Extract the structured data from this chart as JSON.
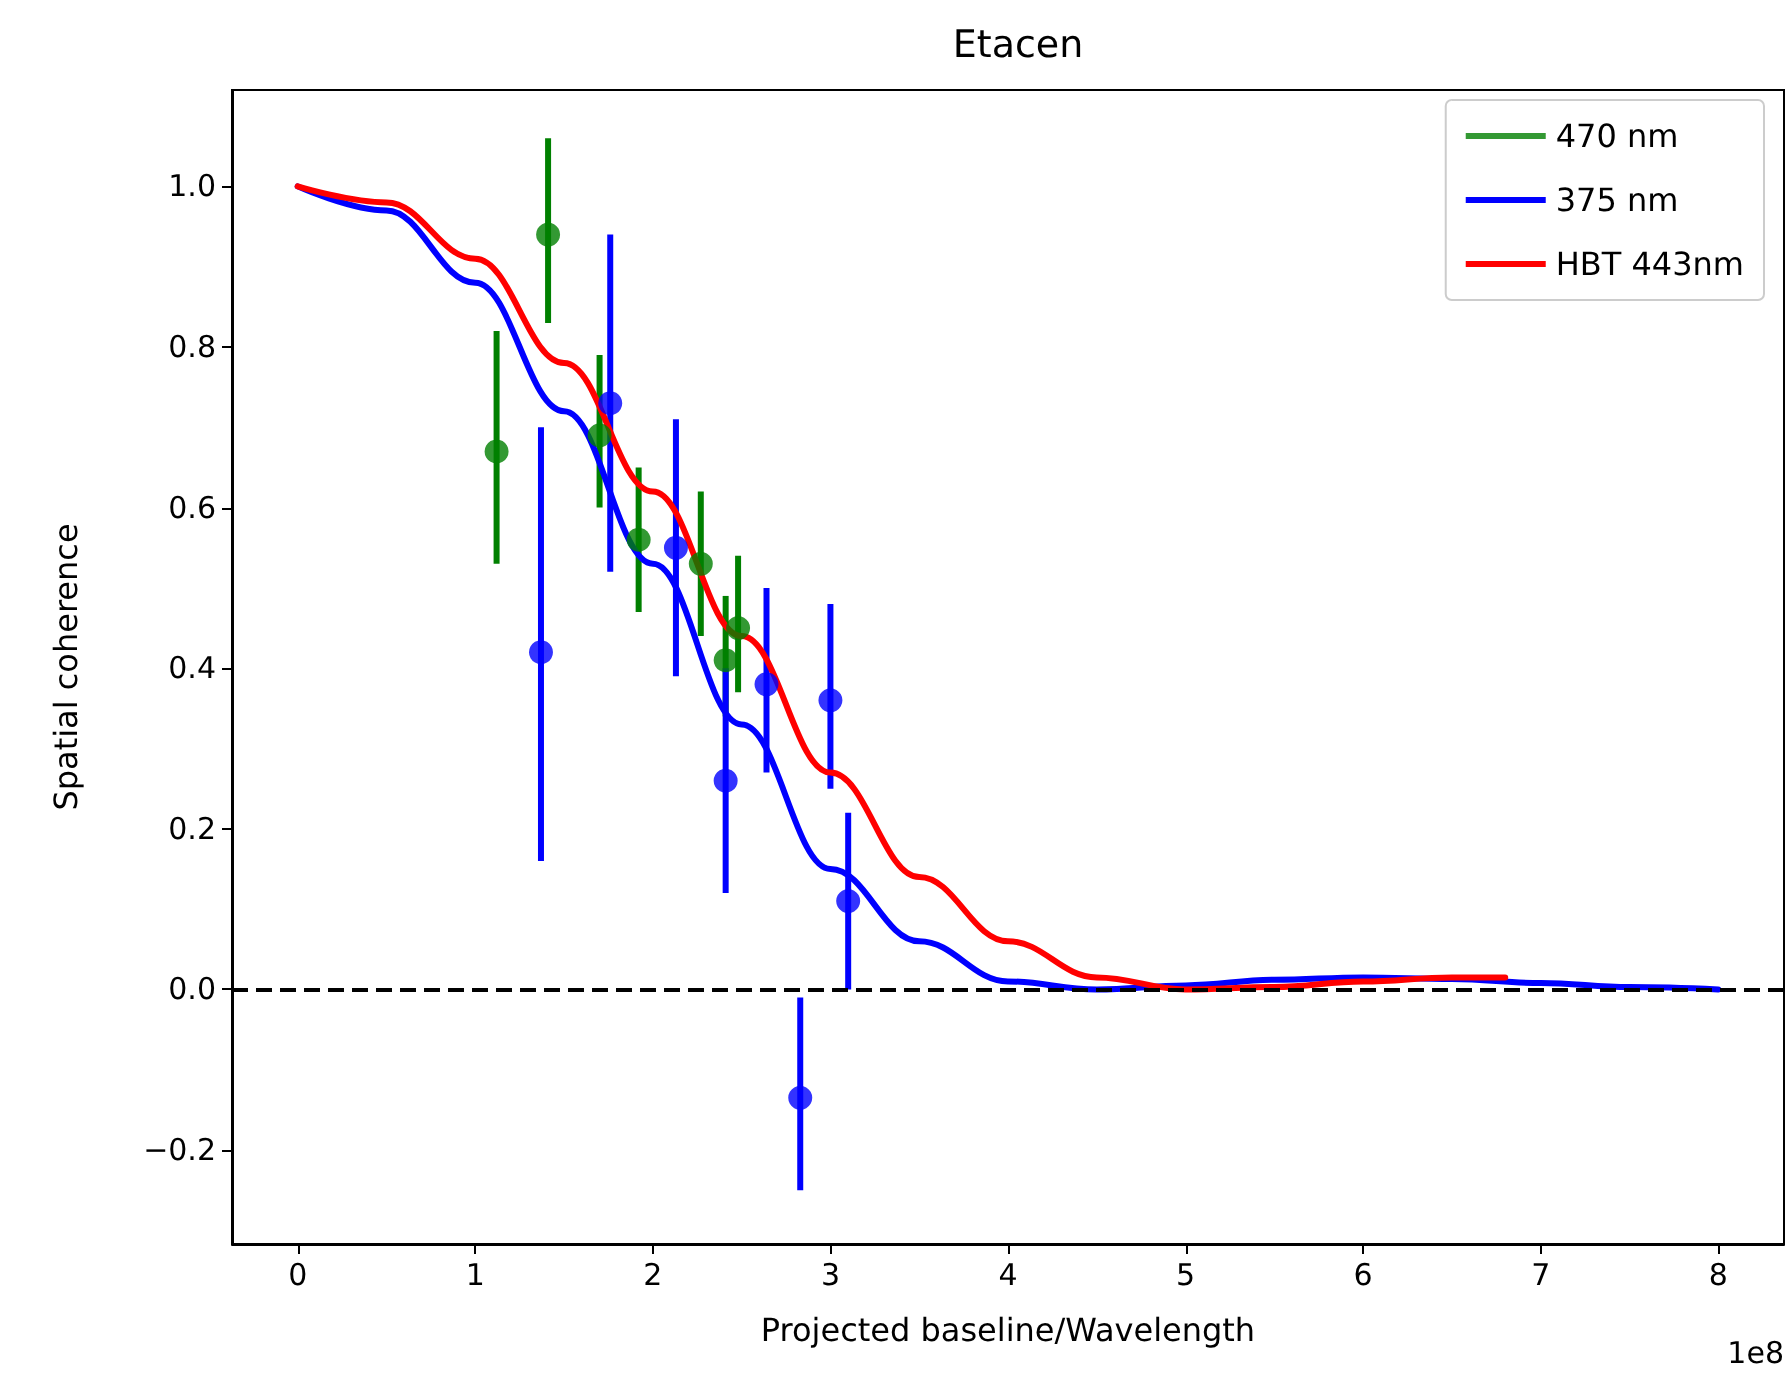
{
  "chart_data": {
    "type": "scatter",
    "title": "Etacen",
    "xlabel": "Projected baseline/Wavelength",
    "ylabel": "Spatial coherence",
    "annotations": [
      "1e8"
    ],
    "xlim": [
      -0.37,
      8.37
    ],
    "xticks": [
      0,
      1,
      2,
      3,
      4,
      5,
      6,
      7,
      8
    ],
    "ylim": [
      -0.317,
      1.12
    ],
    "yticks": [
      {
        "value": -0.2,
        "label": "−0.2"
      },
      {
        "value": 0,
        "label": "0.0"
      },
      {
        "value": 0.2,
        "label": "0.2"
      },
      {
        "value": 0.4,
        "label": "0.4"
      },
      {
        "value": 0.6,
        "label": "0.6"
      },
      {
        "value": 0.8,
        "label": "0.8"
      },
      {
        "value": 1.0,
        "label": "1.0"
      }
    ],
    "grid": false,
    "legend": "top right",
    "marker": "circle",
    "ref_lines": [
      {
        "axis": "y",
        "value": 0,
        "color": "#000000",
        "line_style": "dashed"
      }
    ],
    "series": [
      {
        "name": "470 nm",
        "color": "#008000",
        "x": [
          1.12,
          1.41,
          1.7,
          1.92,
          2.27,
          2.41,
          2.48
        ],
        "values": [
          0.67,
          0.94,
          0.69,
          0.56,
          0.53,
          0.41,
          0.45
        ],
        "errors": [
          [
            0.53,
            0.82
          ],
          [
            0.83,
            1.06
          ],
          [
            0.6,
            0.79
          ],
          [
            0.47,
            0.65
          ],
          [
            0.44,
            0.62
          ],
          [
            0.34,
            0.49
          ],
          [
            0.37,
            0.54
          ]
        ]
      },
      {
        "color": "#0000ff",
        "x": [
          1.37,
          1.76,
          2.13,
          2.41,
          2.64,
          2.83,
          3.0,
          3.1
        ],
        "values": [
          0.42,
          0.73,
          0.55,
          0.26,
          0.38,
          -0.135,
          0.36,
          0.11
        ],
        "errors": [
          [
            0.16,
            0.7
          ],
          [
            0.52,
            0.94
          ],
          [
            0.39,
            0.71
          ],
          [
            0.12,
            0.4
          ],
          [
            0.27,
            0.5
          ],
          [
            -0.25,
            -0.01
          ],
          [
            0.25,
            0.48
          ],
          [
            0.0,
            0.22
          ]
        ]
      },
      {
        "type": "line",
        "name": "375 nm",
        "color": "#0000ff",
        "marker": "none",
        "x": [
          0,
          0.5,
          1.0,
          1.5,
          2.0,
          2.5,
          3.0,
          3.5,
          4.0,
          4.5,
          5.0,
          5.5,
          6.0,
          6.5,
          7.0,
          7.5,
          8.0
        ],
        "values": [
          1.0,
          0.97,
          0.88,
          0.72,
          0.53,
          0.33,
          0.15,
          0.06,
          0.01,
          0.0,
          0.005,
          0.012,
          0.015,
          0.013,
          0.008,
          0.003,
          0.0
        ]
      },
      {
        "type": "line",
        "name": "HBT 443nm",
        "color": "#ff0000",
        "marker": "none",
        "x": [
          0,
          0.5,
          1.0,
          1.5,
          2.0,
          2.5,
          3.0,
          3.5,
          4.0,
          4.5,
          5.0,
          5.5,
          6.0,
          6.5,
          6.8
        ],
        "values": [
          1.0,
          0.98,
          0.91,
          0.78,
          0.62,
          0.44,
          0.27,
          0.14,
          0.06,
          0.015,
          0.0,
          0.003,
          0.01,
          0.015,
          0.015
        ]
      }
    ]
  }
}
